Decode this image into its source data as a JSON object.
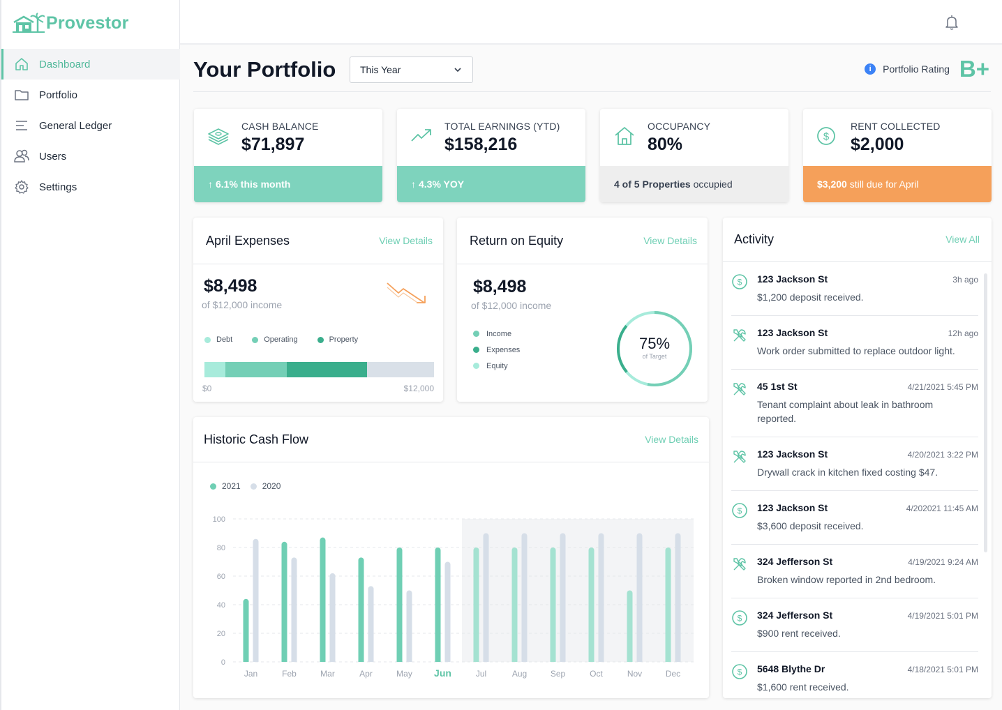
{
  "app": {
    "name": "Provestor"
  },
  "sidebar": {
    "items": [
      {
        "label": "Dashboard",
        "icon": "home-icon",
        "active": true
      },
      {
        "label": "Portfolio",
        "icon": "folder-icon",
        "active": false
      },
      {
        "label": "General Ledger",
        "icon": "ledger-icon",
        "active": false
      },
      {
        "label": "Users",
        "icon": "users-icon",
        "active": false
      },
      {
        "label": "Settings",
        "icon": "gear-icon",
        "active": false
      }
    ]
  },
  "header": {
    "title": "Your Portfolio",
    "period_select": "This Year",
    "rating_label": "Portfolio Rating",
    "rating_value": "B+"
  },
  "stats": [
    {
      "label": "CASH BALANCE",
      "value": "$71,897",
      "foot": "6.1% this month",
      "foot_style": "green",
      "icon": "cash-stack-icon"
    },
    {
      "label": "TOTAL EARNINGS (YTD)",
      "value": "$158,216",
      "foot": "4.3% YOY",
      "foot_style": "green",
      "icon": "trend-up-icon"
    },
    {
      "label": "OCCUPANCY",
      "value": "80%",
      "foot_strong": "4 of 5 Properties",
      "foot_rest": " occupied",
      "foot_style": "gray",
      "icon": "house-icon"
    },
    {
      "label": "RENT COLLECTED",
      "value": "$2,000",
      "foot_strong": "$3,200",
      "foot_rest": " still due for April",
      "foot_style": "orange",
      "icon": "dollar-circle-icon"
    }
  ],
  "expenses": {
    "title": "April Expenses",
    "link": "View Details",
    "amount": "$8,498",
    "sub": "of $12,000 income",
    "legend": [
      "Debt",
      "Operating",
      "Property"
    ],
    "bar_min": "$0",
    "bar_max": "$12,000",
    "segments": [
      {
        "name": "Debt",
        "value": 1100,
        "color": "#a7ebdb"
      },
      {
        "name": "Operating",
        "value": 3200,
        "color": "#74cfb6"
      },
      {
        "name": "Property",
        "value": 4198,
        "color": "#3aae8c"
      }
    ],
    "total": 12000,
    "track_color": "#d9e0e8"
  },
  "roe": {
    "title": "Return on Equity",
    "link": "View Details",
    "amount": "$8,498",
    "sub": "of $12,000 income",
    "legend": [
      "Income",
      "Expenses",
      "Equity"
    ],
    "percent_label": "75%",
    "target_label": "of Target",
    "percent": 0.75
  },
  "activity": {
    "title": "Activity",
    "link": "View All",
    "items": [
      {
        "address": "123 Jackson St",
        "time": "3h ago",
        "desc": "$1,200 deposit received.",
        "icon": "dollar-circle-icon"
      },
      {
        "address": "123 Jackson St",
        "time": "12h ago",
        "desc": "Work order submitted to replace outdoor light.",
        "icon": "tools-icon"
      },
      {
        "address": "45 1st St",
        "time": "4/21/2021 5:45 PM",
        "desc": "Tenant complaint about leak in bathroom reported.",
        "icon": "tools-icon"
      },
      {
        "address": "123 Jackson St",
        "time": "4/20/2021 3:22 PM",
        "desc": "Drywall crack in kitchen fixed costing $47.",
        "icon": "tools-icon"
      },
      {
        "address": "123 Jackson St",
        "time": "4/202021 11:45 AM",
        "desc": "$3,600 deposit received.",
        "icon": "dollar-circle-icon"
      },
      {
        "address": "324 Jefferson St",
        "time": "4/19/2021 9:24 AM",
        "desc": "Broken window reported in 2nd bedroom.",
        "icon": "tools-icon"
      },
      {
        "address": "324 Jefferson St",
        "time": "4/19/2021 5:01 PM",
        "desc": "$900 rent received.",
        "icon": "dollar-circle-icon"
      },
      {
        "address": "5648 Blythe Dr",
        "time": "4/18/2021 5:01 PM",
        "desc": "$1,600 rent received.",
        "icon": "dollar-circle-icon"
      }
    ]
  },
  "cashflow": {
    "title": "Historic Cash Flow",
    "link": "View Details"
  },
  "chart_data": {
    "type": "bar",
    "title": "Historic Cash Flow",
    "categories": [
      "Jan",
      "Feb",
      "Mar",
      "Apr",
      "May",
      "Jun",
      "Jul",
      "Aug",
      "Sep",
      "Oct",
      "Nov",
      "Dec"
    ],
    "highlight_category": "Jun",
    "series": [
      {
        "name": "2021",
        "color": "#6fcfb4",
        "values": [
          44,
          84,
          87,
          73,
          80,
          80,
          80,
          80,
          80,
          80,
          50,
          80
        ]
      },
      {
        "name": "2020",
        "color": "#d6dee8",
        "values": [
          86,
          73,
          62,
          53,
          50,
          70,
          90,
          90,
          90,
          90,
          90,
          90
        ]
      }
    ],
    "ylim": [
      0,
      100
    ],
    "yticks": [
      0,
      20,
      40,
      60,
      80,
      100
    ],
    "grid": true,
    "projected_from": "Jul",
    "legend_position": "top-left"
  }
}
